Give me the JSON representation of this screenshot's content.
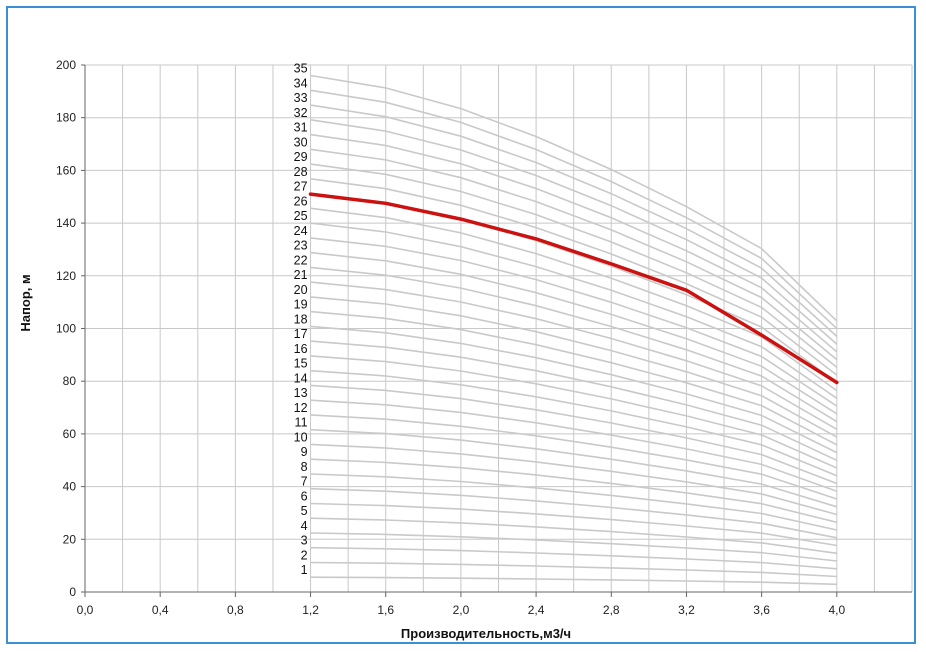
{
  "chart_data": {
    "type": "line",
    "title": "",
    "xlabel": "Производительность,м3/ч",
    "ylabel": "Напор, м",
    "xlim": [
      0,
      4.4
    ],
    "ylim": [
      0,
      200
    ],
    "x_ticks": [
      "0,0",
      "0,4",
      "0,8",
      "1,2",
      "1,6",
      "2,0",
      "2,4",
      "2,8",
      "3,2",
      "3,6",
      "4,0"
    ],
    "x_tick_values": [
      0,
      0.4,
      0.8,
      1.2,
      1.6,
      2.0,
      2.4,
      2.8,
      3.2,
      3.6,
      4.0
    ],
    "y_ticks": [
      "0",
      "20",
      "40",
      "60",
      "80",
      "100",
      "120",
      "140",
      "160",
      "180",
      "200"
    ],
    "y_tick_values": [
      0,
      20,
      40,
      60,
      80,
      100,
      120,
      140,
      160,
      180,
      200
    ],
    "grid": true,
    "x": [
      1.2,
      1.6,
      2.0,
      2.4,
      2.8,
      3.2,
      3.6,
      4.0
    ],
    "shape": [
      1.0,
      0.976,
      0.936,
      0.882,
      0.818,
      0.746,
      0.665,
      0.525
    ],
    "stage_head": 5.6,
    "series_labels": [
      "1",
      "2",
      "3",
      "4",
      "5",
      "6",
      "7",
      "8",
      "9",
      "10",
      "11",
      "12",
      "13",
      "14",
      "15",
      "16",
      "17",
      "18",
      "19",
      "20",
      "21",
      "22",
      "23",
      "24",
      "25",
      "26",
      "27",
      "28",
      "29",
      "30",
      "31",
      "32",
      "33",
      "34",
      "35"
    ],
    "highlight": {
      "name": "27",
      "values": [
        151,
        147.5,
        141.5,
        134,
        124.5,
        114.5,
        97.5,
        79.5
      ],
      "color": "#cc1111"
    },
    "colors": {
      "curve": "#c9c9c9",
      "grid": "#c8c8c8",
      "frame": "#3a8fd6"
    }
  }
}
